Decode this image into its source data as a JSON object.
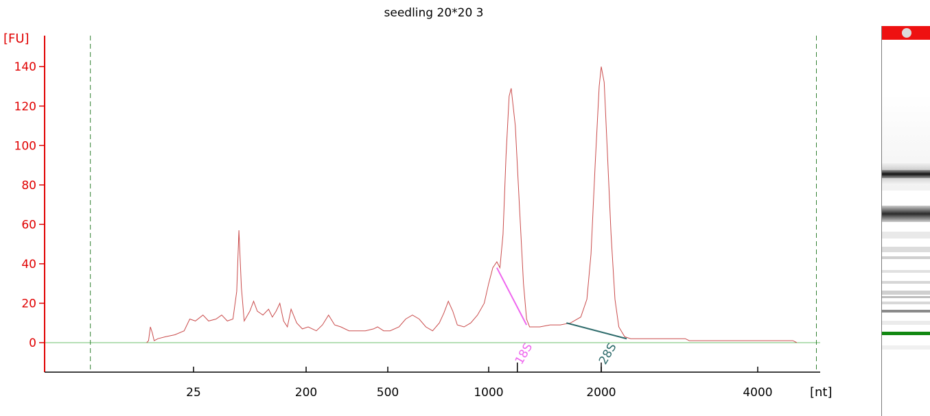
{
  "chart_data": {
    "type": "line",
    "title": "seedling 20*20 3",
    "ylabel": "[FU]",
    "xlabel": "[nt]",
    "ylim": [
      -15,
      155
    ],
    "yticks": [
      0,
      20,
      40,
      60,
      80,
      100,
      120,
      140
    ],
    "xtick_labels": [
      "25",
      "200",
      "500",
      "1000",
      "2000",
      "4000"
    ],
    "x_axis_note": "x values are migration position in seconds-like run units; tick labels show size in nt",
    "xtick_positions": [
      27.5,
      33.5,
      37.5,
      42.0,
      47.5,
      55.5
    ],
    "xlim": [
      20,
      59
    ],
    "lower_marker_x": 22.0,
    "upper_marker_x": 58.5,
    "series": [
      {
        "points": [
          [
            25.0,
            0
          ],
          [
            25.1,
            1
          ],
          [
            25.2,
            8
          ],
          [
            25.3,
            5
          ],
          [
            25.4,
            1
          ],
          [
            25.6,
            2
          ],
          [
            26.0,
            3
          ],
          [
            26.5,
            4
          ],
          [
            27.0,
            6
          ],
          [
            27.3,
            12
          ],
          [
            27.6,
            11
          ],
          [
            28.0,
            14
          ],
          [
            28.3,
            11
          ],
          [
            28.7,
            12
          ],
          [
            29.0,
            14
          ],
          [
            29.3,
            11
          ],
          [
            29.6,
            12
          ],
          [
            29.8,
            26
          ],
          [
            29.92,
            57
          ],
          [
            30.05,
            28
          ],
          [
            30.2,
            11
          ],
          [
            30.5,
            16
          ],
          [
            30.7,
            21
          ],
          [
            30.9,
            16
          ],
          [
            31.2,
            14
          ],
          [
            31.5,
            17
          ],
          [
            31.7,
            13
          ],
          [
            31.9,
            16
          ],
          [
            32.1,
            20
          ],
          [
            32.3,
            11
          ],
          [
            32.5,
            8
          ],
          [
            32.7,
            17
          ],
          [
            33.0,
            10
          ],
          [
            33.3,
            7
          ],
          [
            33.6,
            8
          ],
          [
            34.0,
            6
          ],
          [
            34.3,
            9
          ],
          [
            34.6,
            14
          ],
          [
            34.9,
            9
          ],
          [
            35.2,
            8
          ],
          [
            35.6,
            6
          ],
          [
            36.0,
            6
          ],
          [
            36.4,
            6
          ],
          [
            36.8,
            7
          ],
          [
            37.0,
            8
          ],
          [
            37.3,
            6
          ],
          [
            37.6,
            6
          ],
          [
            38.0,
            8
          ],
          [
            38.3,
            12
          ],
          [
            38.6,
            14
          ],
          [
            38.9,
            12
          ],
          [
            39.2,
            8
          ],
          [
            39.5,
            6
          ],
          [
            39.8,
            10
          ],
          [
            40.0,
            15
          ],
          [
            40.2,
            21
          ],
          [
            40.4,
            16
          ],
          [
            40.6,
            9
          ],
          [
            40.9,
            8
          ],
          [
            41.2,
            10
          ],
          [
            41.5,
            14
          ],
          [
            41.8,
            20
          ],
          [
            42.0,
            30
          ],
          [
            42.2,
            38
          ],
          [
            42.4,
            41
          ],
          [
            42.55,
            38
          ],
          [
            42.7,
            55
          ],
          [
            42.85,
            95
          ],
          [
            43.0,
            125
          ],
          [
            43.1,
            129
          ],
          [
            43.3,
            110
          ],
          [
            43.5,
            70
          ],
          [
            43.7,
            30
          ],
          [
            43.85,
            12
          ],
          [
            44.0,
            8
          ],
          [
            44.5,
            8
          ],
          [
            45.0,
            9
          ],
          [
            45.5,
            9
          ],
          [
            46.0,
            10
          ],
          [
            46.5,
            13
          ],
          [
            46.8,
            22
          ],
          [
            47.0,
            45
          ],
          [
            47.2,
            90
          ],
          [
            47.4,
            130
          ],
          [
            47.5,
            140
          ],
          [
            47.65,
            132
          ],
          [
            47.8,
            100
          ],
          [
            48.0,
            55
          ],
          [
            48.2,
            22
          ],
          [
            48.4,
            8
          ],
          [
            48.7,
            3
          ],
          [
            49.0,
            2
          ],
          [
            50.0,
            2
          ],
          [
            51.0,
            2
          ],
          [
            51.8,
            2
          ],
          [
            52.0,
            1
          ],
          [
            54.0,
            1
          ],
          [
            56.0,
            1
          ],
          [
            57.3,
            1
          ],
          [
            57.5,
            0
          ]
        ]
      }
    ],
    "annotations": [
      {
        "label": "18S",
        "x_start": 42.4,
        "y_start": 38,
        "x_end": 43.85,
        "y_end": 9,
        "label_x": 43.4,
        "color": "#ee66ee"
      },
      {
        "label": "28S",
        "x_start": 45.8,
        "y_start": 10,
        "x_end": 48.8,
        "y_end": 2,
        "label_x": 47.5,
        "color": "#2e6b6b"
      }
    ],
    "grid": false,
    "colors": {
      "trace": "#c94a4a",
      "axis": "#e00000",
      "baseline": "#6bbf6b",
      "markers": "#2f7f2f"
    }
  },
  "gel_lane": {
    "colors": {
      "header": "#ee1111",
      "marker_band": "#118811"
    }
  }
}
